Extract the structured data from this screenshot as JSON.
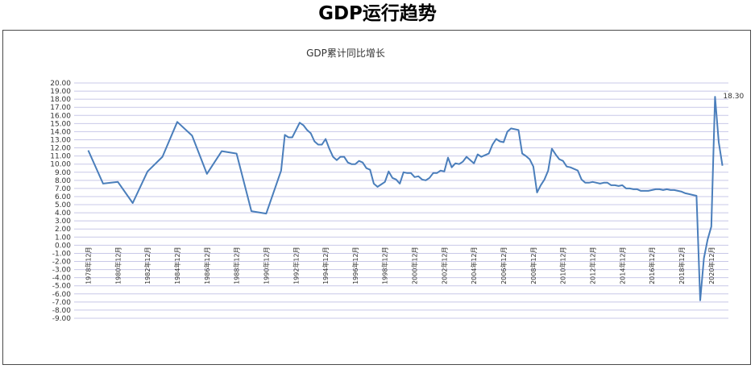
{
  "page": {
    "title": "GDP运行趋势"
  },
  "chart_data": {
    "type": "line",
    "title": "GDP累计同比增长",
    "ylim": [
      -9,
      20
    ],
    "yticks": [
      20,
      19,
      18,
      17,
      16,
      15,
      14,
      13,
      12,
      11,
      10,
      9,
      8,
      7,
      6,
      5,
      4,
      3,
      2,
      1,
      0,
      -1,
      -2,
      -3,
      -4,
      -5,
      -6,
      -7,
      -8,
      -9
    ],
    "ytick_labels": [
      "20.00",
      "19.00",
      "18.00",
      "17.00",
      "16.00",
      "15.00",
      "14.00",
      "13.00",
      "12.00",
      "11.00",
      "10.00",
      "9.00",
      "8.00",
      "7.00",
      "6.00",
      "5.00",
      "4.00",
      "3.00",
      "2.00",
      "1.00",
      "0.00",
      "-1.00",
      "-2.00",
      "-3.00",
      "-4.00",
      "-5.00",
      "-6.00",
      "-7.00",
      "-8.00",
      "-9.00"
    ],
    "x_range": [
      1978,
      2022.1
    ],
    "xticks": [
      1978.95,
      1980.95,
      1982.95,
      1984.95,
      1986.95,
      1988.95,
      1990.95,
      1992.95,
      1994.95,
      1996.95,
      1998.95,
      2000.95,
      2002.95,
      2004.95,
      2006.95,
      2008.95,
      2010.95,
      2012.95,
      2014.95,
      2016.95,
      2018.95,
      2020.95
    ],
    "xtick_labels": [
      "1978年12月",
      "1980年12月",
      "1982年12月",
      "1984年12月",
      "1986年12月",
      "1988年12月",
      "1990年12月",
      "1992年12月",
      "1994年12月",
      "1996年12月",
      "1998年12月",
      "2000年12月",
      "2002年12月",
      "2004年12月",
      "2006年12月",
      "2008年12月",
      "2010年12月",
      "2012年12月",
      "2014年12月",
      "2016年12月",
      "2018年12月",
      "2020年12月"
    ],
    "grid": true,
    "line_color": "#4a7ebb",
    "grid_color": "#c8c8e8",
    "series": [
      {
        "x": [
          1978.95,
          1979.95,
          1980.95,
          1981.95,
          1982.95,
          1983.95,
          1984.95,
          1985.95,
          1986.95,
          1987.95,
          1988.95,
          1989.95,
          1990.95,
          1991.95,
          1992.2,
          1992.45,
          1992.7,
          1992.95,
          1993.2,
          1993.45,
          1993.7,
          1993.95,
          1994.2,
          1994.45,
          1994.7,
          1994.95,
          1995.2,
          1995.45,
          1995.7,
          1995.95,
          1996.2,
          1996.45,
          1996.7,
          1996.95,
          1997.2,
          1997.45,
          1997.7,
          1997.95,
          1998.2,
          1998.45,
          1998.7,
          1998.95,
          1999.2,
          1999.45,
          1999.7,
          1999.95,
          2000.2,
          2000.45,
          2000.7,
          2000.95,
          2001.2,
          2001.45,
          2001.7,
          2001.95,
          2002.2,
          2002.45,
          2002.7,
          2002.95,
          2003.2,
          2003.45,
          2003.7,
          2003.95,
          2004.2,
          2004.45,
          2004.7,
          2004.95,
          2005.2,
          2005.45,
          2005.7,
          2005.95,
          2006.2,
          2006.45,
          2006.7,
          2006.95,
          2007.2,
          2007.45,
          2007.7,
          2007.95,
          2008.2,
          2008.45,
          2008.7,
          2008.95,
          2009.2,
          2009.45,
          2009.7,
          2009.95,
          2010.2,
          2010.45,
          2010.7,
          2010.95,
          2011.2,
          2011.45,
          2011.7,
          2011.95,
          2012.2,
          2012.45,
          2012.7,
          2012.95,
          2013.2,
          2013.45,
          2013.7,
          2013.95,
          2014.2,
          2014.45,
          2014.7,
          2014.95,
          2015.2,
          2015.45,
          2015.7,
          2015.95,
          2016.2,
          2016.45,
          2016.7,
          2016.95,
          2017.2,
          2017.45,
          2017.7,
          2017.95,
          2018.2,
          2018.45,
          2018.7,
          2018.95,
          2019.2,
          2019.45,
          2019.7,
          2019.95,
          2020.2,
          2020.45,
          2020.7,
          2020.95,
          2021.2,
          2021.45,
          2021.7
        ],
        "y": [
          11.7,
          7.6,
          7.8,
          5.2,
          9.1,
          10.9,
          15.2,
          13.5,
          8.8,
          11.6,
          11.3,
          4.2,
          3.9,
          9.2,
          13.6,
          13.3,
          13.3,
          14.2,
          15.1,
          14.8,
          14.2,
          13.8,
          12.8,
          12.4,
          12.4,
          13.1,
          11.9,
          10.9,
          10.5,
          10.9,
          10.9,
          10.2,
          10.0,
          10.0,
          10.4,
          10.2,
          9.5,
          9.3,
          7.6,
          7.2,
          7.5,
          7.8,
          9.1,
          8.3,
          8.1,
          7.6,
          9.0,
          8.9,
          8.9,
          8.4,
          8.5,
          8.1,
          8.0,
          8.3,
          8.9,
          8.9,
          9.2,
          9.1,
          10.8,
          9.6,
          10.1,
          10.0,
          10.3,
          10.9,
          10.5,
          10.1,
          11.2,
          10.9,
          11.1,
          11.3,
          12.4,
          13.1,
          12.8,
          12.7,
          14.0,
          14.4,
          14.3,
          14.2,
          11.3,
          11.0,
          10.6,
          9.7,
          6.5,
          7.4,
          8.1,
          9.2,
          11.9,
          11.2,
          10.6,
          10.4,
          9.7,
          9.6,
          9.4,
          9.2,
          8.1,
          7.7,
          7.7,
          7.8,
          7.7,
          7.6,
          7.7,
          7.7,
          7.4,
          7.4,
          7.3,
          7.4,
          7.0,
          7.0,
          6.9,
          6.9,
          6.7,
          6.7,
          6.7,
          6.8,
          6.9,
          6.9,
          6.8,
          6.9,
          6.8,
          6.8,
          6.7,
          6.6,
          6.4,
          6.3,
          6.2,
          6.1,
          -6.8,
          -1.6,
          0.7,
          2.3,
          18.3,
          12.7,
          9.8
        ]
      }
    ],
    "annotation": {
      "text": "18.30",
      "x": 2021.2,
      "y": 18.3
    }
  }
}
